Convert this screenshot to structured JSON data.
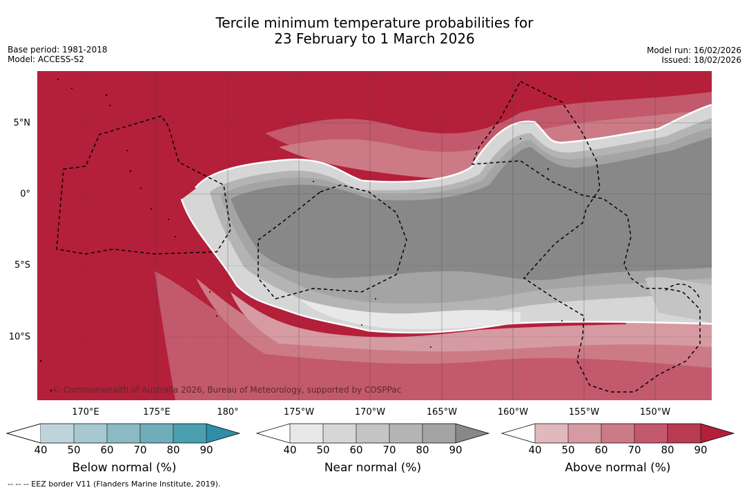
{
  "title_line1": "Tercile minimum temperature probabilities for",
  "title_line2": "23 February to 1 March 2026",
  "meta_left": {
    "base_period": "Base period: 1981-2018",
    "model": "Model: ACCESS-S2"
  },
  "meta_right": {
    "model_run": "Model run: 16/02/2026",
    "issued": "Issued: 18/02/2026"
  },
  "lat_labels": [
    "5°N",
    "0°",
    "5°S",
    "10°S"
  ],
  "lon_labels": [
    "170°E",
    "175°E",
    "180°",
    "175°W",
    "170°W",
    "165°W",
    "160°W",
    "155°W",
    "150°W"
  ],
  "copyright": "© Commonwealth of Australia 2026, Bureau of Meteorology, supported by COSPPac",
  "colorbars": [
    {
      "title": "Below normal (%)",
      "ticks": [
        "40",
        "50",
        "60",
        "70",
        "80",
        "90"
      ],
      "colors": [
        "#bfd4da",
        "#a6c8ce",
        "#8bbac4",
        "#6fadba",
        "#4a9fb0",
        "#2e8ea6"
      ]
    },
    {
      "title": "Near normal (%)",
      "ticks": [
        "40",
        "50",
        "60",
        "70",
        "80",
        "90"
      ],
      "colors": [
        "#e8e8e8",
        "#d6d6d6",
        "#c4c4c4",
        "#b4b4b4",
        "#a4a4a4",
        "#888888"
      ]
    },
    {
      "title": "Above normal (%)",
      "ticks": [
        "40",
        "50",
        "60",
        "70",
        "80",
        "90"
      ],
      "colors": [
        "#e0b8bd",
        "#d69aa2",
        "#cc7b86",
        "#c3596c",
        "#b93c52",
        "#b41f3a"
      ]
    }
  ],
  "footnote": "--  --  -- EEZ border V11 (Flanders Marine Institute, 2019).",
  "colors": {
    "above_max": "#b41f3a",
    "near_max": "#888888",
    "grid": "#444444"
  }
}
